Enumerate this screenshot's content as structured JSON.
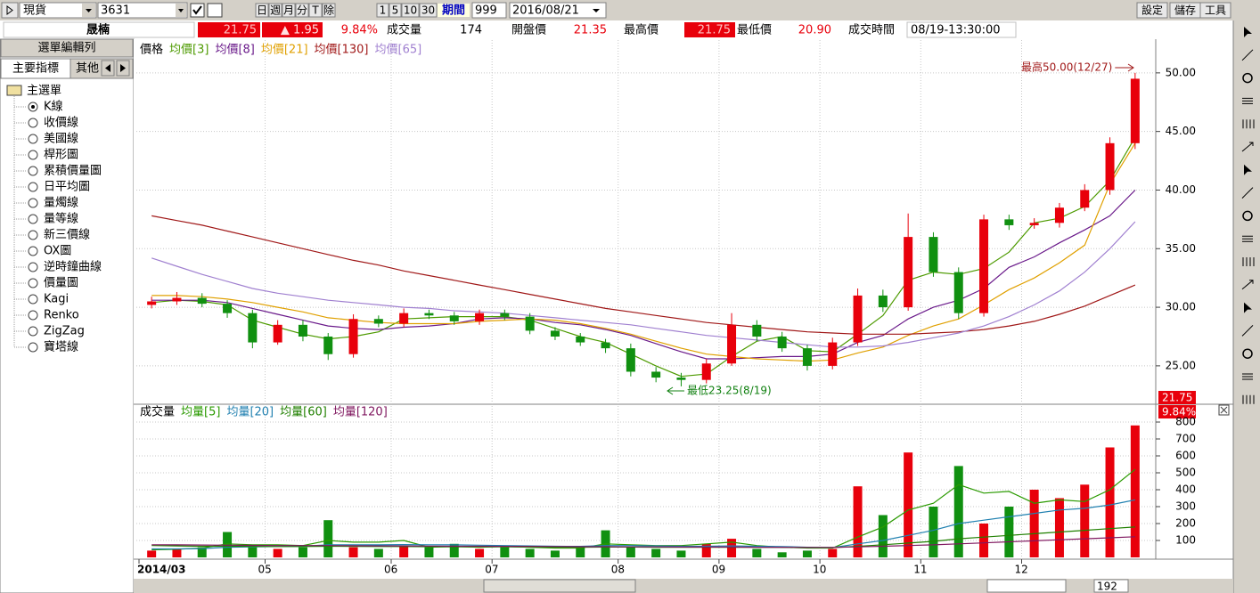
{
  "toolbar": {
    "product": "現貨",
    "code": "3631",
    "periods": [
      "日",
      "週",
      "月",
      "分",
      "T",
      "除"
    ],
    "minutes": [
      "1",
      "5",
      "10",
      "30"
    ],
    "period_label": "期間",
    "count": "999",
    "date": "2016/08/21",
    "buttons": [
      "設定",
      "儲存",
      "工具"
    ]
  },
  "info": {
    "name": "晟楠",
    "price": "21.75",
    "change": "▲ 1.95",
    "change_pct": "9.84%",
    "volume_label": "成交量",
    "volume": "174",
    "open_label": "開盤價",
    "open": "21.35",
    "high_label": "最高價",
    "high": "21.75",
    "low_label": "最低價",
    "low": "20.90",
    "time_label": "成交時間",
    "time": "08/19-13:30:00"
  },
  "sidebar": {
    "header": "選單編輯列",
    "tabs": [
      "主要指標",
      "其他"
    ],
    "root": "主選單",
    "items": [
      "K線",
      "收價線",
      "美國線",
      "桿形圖",
      "累積價量圖",
      "日平均圖",
      "量燭線",
      "量等線",
      "新三價線",
      "OX圖",
      "逆時鐘曲線",
      "價量圖",
      "Kagi",
      "Renko",
      "ZigZag",
      "寶塔線"
    ]
  },
  "scroll": {
    "count": "192"
  },
  "chart_data": [
    {
      "type": "candlestick",
      "legend_title": "價格",
      "up_color": "#e8000b",
      "down_color": "#109010",
      "grid": true,
      "categories": [
        "2014/03",
        null,
        null,
        null,
        null,
        "05",
        null,
        null,
        null,
        null,
        "06",
        null,
        null,
        null,
        "07",
        null,
        null,
        null,
        null,
        "08",
        null,
        null,
        null,
        "09",
        null,
        null,
        null,
        "10",
        null,
        null,
        null,
        "11",
        null,
        null,
        null,
        "12",
        null,
        null,
        null,
        null
      ],
      "open": [
        30.2,
        30.5,
        30.8,
        30.3,
        29.5,
        27.0,
        28.5,
        27.5,
        26.0,
        29.0,
        28.6,
        29.5,
        29.3,
        28.8,
        29.5,
        29.2,
        28.0,
        27.5,
        27.0,
        26.5,
        24.5,
        24.0,
        23.8,
        25.2,
        28.5,
        27.5,
        26.5,
        25.0,
        27.0,
        31.0,
        30.0,
        36.0,
        33.0,
        29.5,
        37.5,
        37.0,
        37.2,
        38.5,
        40.0,
        44.0
      ],
      "high": [
        30.9,
        31.3,
        31.2,
        30.6,
        29.8,
        28.9,
        28.9,
        27.8,
        29.4,
        29.3,
        29.9,
        29.8,
        29.6,
        29.8,
        29.8,
        29.5,
        28.3,
        27.8,
        27.3,
        26.9,
        24.9,
        24.4,
        25.6,
        29.5,
        28.9,
        27.9,
        26.8,
        27.4,
        31.6,
        31.5,
        38.0,
        36.4,
        33.4,
        37.9,
        37.9,
        37.6,
        38.9,
        40.5,
        44.5,
        50.0
      ],
      "low": [
        29.9,
        30.2,
        30.0,
        29.1,
        26.5,
        26.8,
        27.1,
        25.5,
        25.7,
        28.3,
        28.3,
        29.0,
        28.5,
        28.5,
        28.9,
        27.7,
        27.2,
        26.7,
        26.1,
        24.1,
        23.6,
        23.25,
        23.5,
        25.0,
        27.1,
        26.2,
        24.6,
        24.7,
        26.7,
        29.6,
        29.7,
        32.6,
        29.0,
        29.2,
        36.6,
        36.7,
        36.8,
        38.2,
        39.6,
        43.5
      ],
      "close": [
        30.5,
        30.8,
        30.3,
        29.5,
        27.0,
        28.5,
        27.5,
        26.0,
        29.0,
        28.6,
        29.5,
        29.3,
        28.8,
        29.5,
        29.2,
        28.0,
        27.5,
        27.0,
        26.5,
        24.5,
        24.0,
        23.8,
        25.2,
        28.5,
        27.5,
        26.5,
        25.0,
        27.0,
        31.0,
        30.0,
        36.0,
        33.0,
        29.5,
        37.5,
        37.0,
        37.2,
        38.5,
        40.0,
        44.0,
        49.5
      ],
      "series": [
        {
          "name": "均價[3]",
          "color": "#4d9a00",
          "values": [
            30.4,
            30.6,
            30.5,
            30.2,
            28.9,
            28.3,
            27.7,
            27.3,
            27.5,
            27.9,
            29.0,
            29.1,
            29.2,
            29.2,
            29.2,
            28.9,
            28.2,
            27.5,
            27.0,
            26.0,
            25.0,
            24.1,
            24.3,
            25.8,
            27.1,
            27.5,
            26.3,
            26.2,
            27.7,
            29.3,
            32.3,
            33.0,
            32.8,
            33.3,
            34.7,
            37.2,
            37.6,
            38.6,
            40.8,
            44.5
          ]
        },
        {
          "name": "均價[8]",
          "color": "#6a1a8a",
          "values": [
            30.6,
            30.6,
            30.6,
            30.4,
            29.9,
            29.4,
            28.9,
            28.4,
            28.2,
            28.1,
            28.3,
            28.4,
            28.6,
            29.0,
            29.1,
            29.0,
            28.7,
            28.5,
            28.1,
            27.6,
            26.9,
            26.2,
            25.6,
            25.6,
            25.7,
            25.8,
            25.8,
            26.0,
            27.0,
            27.6,
            29.0,
            30.0,
            30.6,
            31.6,
            33.4,
            34.3,
            35.5,
            36.6,
            37.8,
            40.0
          ]
        },
        {
          "name": "均價[21]",
          "color": "#e0a000",
          "values": [
            31.0,
            31.0,
            30.9,
            30.7,
            30.4,
            30.0,
            29.6,
            29.1,
            28.9,
            28.7,
            28.6,
            28.6,
            28.6,
            28.8,
            28.9,
            29.0,
            28.9,
            28.6,
            28.2,
            27.7,
            27.1,
            26.5,
            26.0,
            25.8,
            25.6,
            25.5,
            25.4,
            25.5,
            26.1,
            26.6,
            27.6,
            28.4,
            29.0,
            30.2,
            31.5,
            32.5,
            33.8,
            35.3,
            40.5,
            44.0
          ]
        },
        {
          "name": "均價[130]",
          "color": "#a01818",
          "values": [
            37.8,
            37.4,
            37.0,
            36.5,
            36.0,
            35.5,
            35.0,
            34.5,
            34.0,
            33.6,
            33.1,
            32.7,
            32.3,
            31.9,
            31.5,
            31.1,
            30.7,
            30.3,
            29.9,
            29.6,
            29.3,
            29.0,
            28.7,
            28.5,
            28.3,
            28.1,
            27.9,
            27.8,
            27.7,
            27.7,
            27.7,
            27.8,
            27.9,
            28.1,
            28.4,
            28.8,
            29.4,
            30.1,
            31.0,
            31.9
          ]
        },
        {
          "name": "均價[65]",
          "color": "#a080d0",
          "values": [
            34.2,
            33.5,
            32.8,
            32.2,
            31.6,
            31.2,
            30.9,
            30.6,
            30.4,
            30.2,
            30.0,
            29.9,
            29.7,
            29.6,
            29.5,
            29.3,
            29.1,
            28.9,
            28.7,
            28.5,
            28.2,
            27.9,
            27.6,
            27.4,
            27.2,
            27.0,
            26.8,
            26.6,
            26.6,
            26.7,
            27.0,
            27.4,
            27.8,
            28.4,
            29.2,
            30.2,
            31.4,
            33.0,
            35.0,
            37.3
          ]
        }
      ],
      "ylim": [
        21.8,
        52.8
      ],
      "yticks": [
        {
          "value": 25,
          "label": "25.00"
        },
        {
          "value": 30,
          "label": "30.00"
        },
        {
          "value": 35,
          "label": "35.00"
        },
        {
          "value": 40,
          "label": "40.00"
        },
        {
          "value": 45,
          "label": "45.00"
        },
        {
          "value": 50,
          "label": "50.00"
        }
      ],
      "annotations": [
        "最高50.00(12/27)",
        "最低23.25(8/19)"
      ]
    },
    {
      "type": "bar",
      "legend_title": "成交量",
      "grid": true,
      "values": [
        40,
        50,
        60,
        150,
        60,
        50,
        60,
        220,
        60,
        50,
        70,
        60,
        80,
        50,
        60,
        50,
        40,
        60,
        160,
        60,
        50,
        40,
        80,
        110,
        50,
        30,
        40,
        50,
        420,
        250,
        620,
        300,
        540,
        200,
        300,
        400,
        350,
        430,
        650,
        780
      ],
      "series": [
        {
          "name": "均量[5]",
          "color": "#2a9a00",
          "values": [
            45,
            48,
            55,
            80,
            75,
            75,
            70,
            100,
            90,
            90,
            100,
            60,
            65,
            60,
            65,
            60,
            55,
            55,
            80,
            75,
            70,
            70,
            80,
            90,
            70,
            60,
            55,
            55,
            120,
            180,
            280,
            320,
            430,
            380,
            390,
            320,
            340,
            330,
            400,
            520
          ]
        },
        {
          "name": "均量[20]",
          "color": "#2080b0",
          "values": [
            50,
            50,
            52,
            60,
            62,
            64,
            66,
            75,
            75,
            74,
            76,
            75,
            74,
            72,
            70,
            68,
            66,
            65,
            70,
            70,
            68,
            66,
            66,
            68,
            66,
            64,
            60,
            58,
            80,
            100,
            130,
            160,
            200,
            220,
            240,
            260,
            280,
            290,
            310,
            340
          ]
        },
        {
          "name": "均量[60]",
          "color": "#208000",
          "values": [
            70,
            68,
            66,
            66,
            65,
            64,
            64,
            66,
            65,
            64,
            64,
            63,
            62,
            62,
            62,
            61,
            61,
            60,
            61,
            61,
            60,
            60,
            60,
            60,
            60,
            59,
            58,
            58,
            65,
            75,
            85,
            95,
            110,
            120,
            130,
            140,
            150,
            160,
            170,
            180
          ]
        },
        {
          "name": "均量[120]",
          "color": "#801860",
          "values": [
            75,
            74,
            73,
            72,
            71,
            70,
            70,
            70,
            69,
            68,
            68,
            67,
            66,
            66,
            65,
            65,
            64,
            63,
            63,
            62,
            62,
            61,
            61,
            61,
            60,
            60,
            59,
            59,
            62,
            66,
            70,
            74,
            80,
            86,
            92,
            98,
            104,
            110,
            116,
            122
          ]
        }
      ],
      "ylim": [
        0,
        900
      ],
      "yticks": [
        100,
        200,
        300,
        400,
        500,
        600,
        700,
        800
      ]
    }
  ]
}
